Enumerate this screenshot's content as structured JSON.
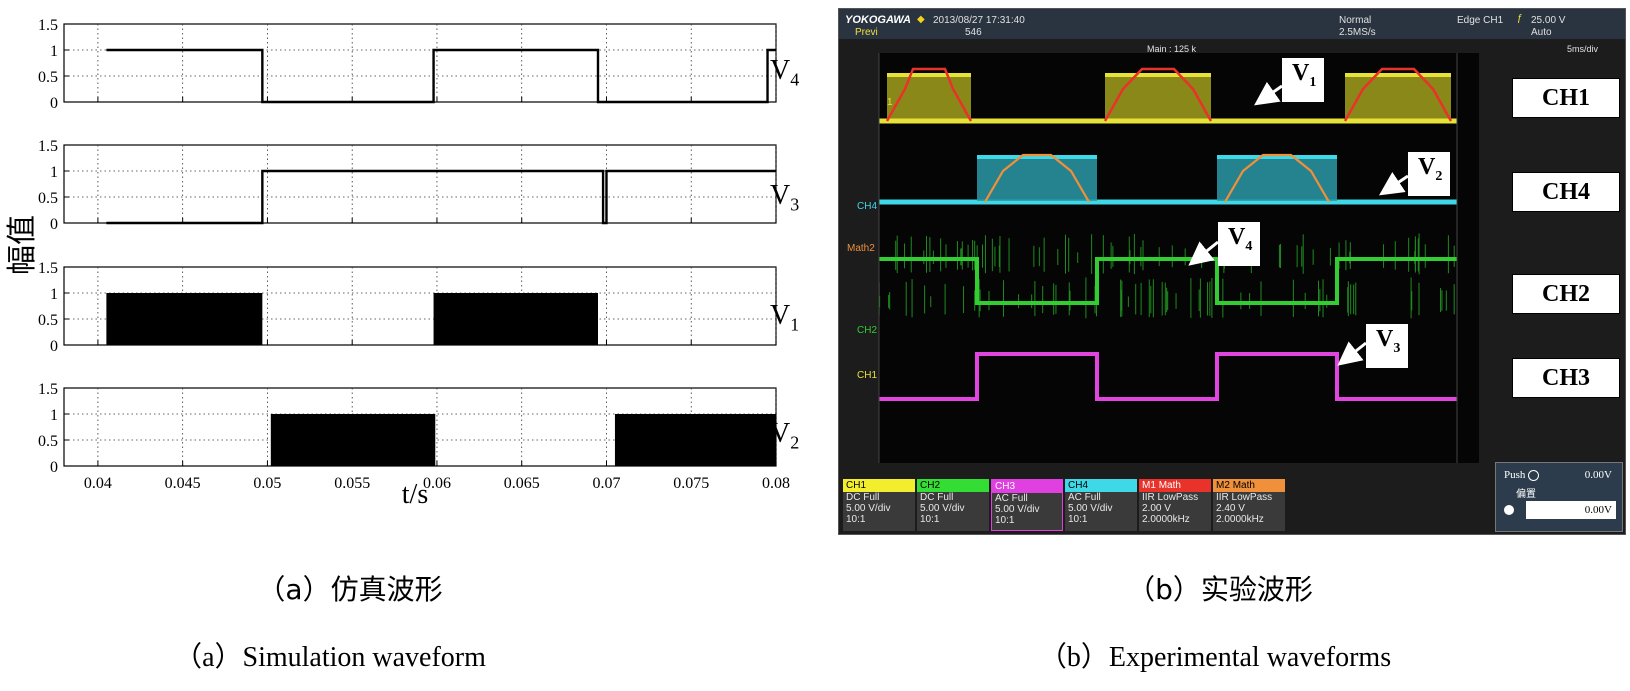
{
  "simulation": {
    "ylabel": "幅值",
    "xlabel": "t/s",
    "ytick_labels": [
      "1.5",
      "1",
      "0.5",
      "0"
    ],
    "xtick_labels": [
      "0.04",
      "0.045",
      "0.05",
      "0.055",
      "0.06",
      "0.065",
      "0.07",
      "0.075",
      "0.08"
    ],
    "panel_labels": [
      "V4",
      "V3",
      "V1",
      "V2"
    ]
  },
  "chart_data": [
    {
      "type": "line",
      "series": [
        {
          "name": "V4",
          "segments": [
            [
              0.0405,
              0.0497,
              1
            ],
            [
              0.0497,
              0.0598,
              0
            ],
            [
              0.0598,
              0.0695,
              1
            ],
            [
              0.0695,
              0.0795,
              0
            ],
            [
              0.0795,
              0.08,
              1
            ]
          ]
        },
        {
          "name": "V3",
          "segments": [
            [
              0.0405,
              0.0497,
              0
            ],
            [
              0.0497,
              0.0698,
              1
            ],
            [
              0.0698,
              0.07,
              0
            ],
            [
              0.07,
              0.08,
              1
            ]
          ]
        },
        {
          "name": "V1",
          "filled": true,
          "segments": [
            [
              0.0405,
              0.0497,
              1
            ],
            [
              0.0497,
              0.0598,
              0
            ],
            [
              0.0598,
              0.0695,
              1
            ],
            [
              0.0695,
              0.08,
              0
            ]
          ]
        },
        {
          "name": "V2",
          "filled": true,
          "segments": [
            [
              0.0405,
              0.0502,
              0
            ],
            [
              0.0502,
              0.0599,
              1
            ],
            [
              0.0599,
              0.0705,
              0
            ],
            [
              0.0705,
              0.08,
              1
            ]
          ]
        }
      ],
      "xlim": [
        0.038,
        0.08
      ],
      "ylim": [
        0,
        1.5
      ],
      "xlabel": "t/s",
      "ylabel": "幅值",
      "grid": true
    }
  ],
  "scope": {
    "brand": "YOKOGAWA",
    "datetime": "2013/08/27 17:31:40",
    "preview_label": "Previ",
    "preview_value": "546",
    "mode": "Normal",
    "sample_rate": "2.5MS/s",
    "trigger": "Edge CH1",
    "trigger_level": "25.00 V",
    "trigger_mode": "Auto",
    "main_points": "Main : 125 k",
    "timebase": "5ms/div",
    "side_labels": [
      "CH4",
      "Math2",
      "CH2",
      "CH1"
    ],
    "marker_label": "1",
    "trace_colors": {
      "CH1": "#e7e23a",
      "CH4": "#3fd8e6",
      "CH2": "#33cc33",
      "CH3": "#e045e0",
      "M1": "#e8322a",
      "M2": "#f0903a"
    },
    "channel_tiles": [
      {
        "name": "CH1",
        "color": "#f2ee2e",
        "coupling": "DC Full",
        "scale": "5.00 V/div",
        "probe": "10:1"
      },
      {
        "name": "CH2",
        "color": "#33dd33",
        "coupling": "DC Full",
        "scale": "5.00 V/div",
        "probe": "10:1"
      },
      {
        "name": "CH3",
        "color": "#e040e0",
        "coupling": "AC Full",
        "scale": "5.00 V/div",
        "probe": "10:1"
      },
      {
        "name": "CH4",
        "color": "#3fd8e6",
        "coupling": "AC Full",
        "scale": "5.00 V/div",
        "probe": "10:1"
      },
      {
        "name": "M1",
        "kind": "Math",
        "color": "#e8322a",
        "coupling": "IIR LowPass",
        "scale": "2.00 V",
        "probe": "2.0000kHz"
      },
      {
        "name": "M2",
        "kind": "Math",
        "color": "#f0903a",
        "coupling": "IIR LowPass",
        "scale": "2.40 V",
        "probe": "2.0000kHz"
      }
    ],
    "push_label": "Push",
    "push_value": "0.00V",
    "offset_label": "偏置",
    "offset_value": "0.00V",
    "ch_boxes": [
      "CH1",
      "CH4",
      "CH2",
      "CH3"
    ],
    "v_callouts": [
      {
        "main": "V",
        "sub": "1"
      },
      {
        "main": "V",
        "sub": "2"
      },
      {
        "main": "V",
        "sub": "4"
      },
      {
        "main": "V",
        "sub": "3"
      }
    ]
  },
  "captions": {
    "a_cn": "（a）仿真波形",
    "b_cn": "（b）实验波形",
    "a_en": "（a）Simulation waveform",
    "b_en": "（b）Experimental waveforms"
  }
}
